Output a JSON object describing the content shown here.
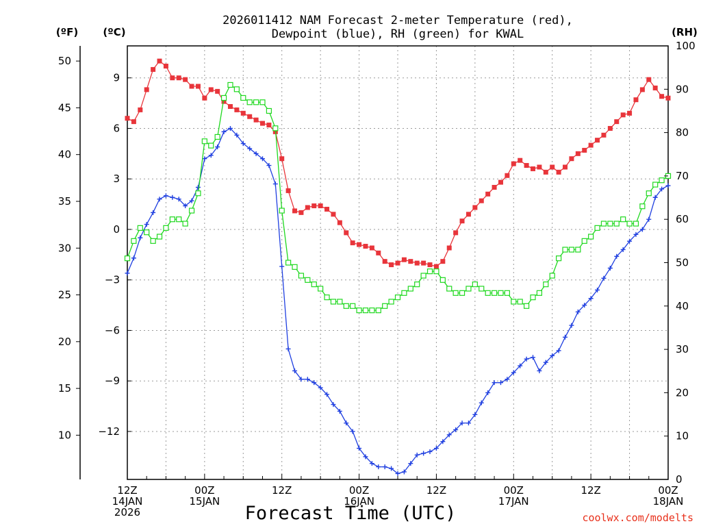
{
  "chart_data": {
    "type": "line",
    "title_lines": [
      "2026011412 NAM Forecast 2-meter Temperature (red),",
      "Dewpoint (blue), RH (green) for KWAL"
    ],
    "xlabel": "Forecast Time (UTC)",
    "credit": "coolwx.com/modelts",
    "units": {
      "fahrenheit": "(ºF)",
      "celsius": "(ºC)",
      "rh": "(RH)"
    },
    "x_ticks": [
      {
        "hour": 0,
        "lines": [
          "12Z",
          "14JAN",
          "2026"
        ]
      },
      {
        "hour": 12,
        "lines": [
          "00Z",
          "15JAN"
        ]
      },
      {
        "hour": 24,
        "lines": [
          "12Z"
        ]
      },
      {
        "hour": 36,
        "lines": [
          "00Z",
          "16JAN"
        ]
      },
      {
        "hour": 48,
        "lines": [
          "12Z"
        ]
      },
      {
        "hour": 60,
        "lines": [
          "00Z",
          "17JAN"
        ]
      },
      {
        "hour": 72,
        "lines": [
          "12Z"
        ]
      },
      {
        "hour": 84,
        "lines": [
          "00Z",
          "18JAN"
        ]
      }
    ],
    "x_range": [
      0,
      84
    ],
    "f_ticks": [
      "50",
      "45",
      "40",
      "35",
      "30",
      "25",
      "20",
      "15",
      "10"
    ],
    "c_ticks": [
      "9",
      "6",
      "3",
      "0",
      "−3",
      "−6",
      "−9",
      "−12"
    ],
    "rh_ticks": [
      "100",
      "90",
      "80",
      "70",
      "60",
      "50",
      "40",
      "30",
      "20",
      "10",
      "0"
    ],
    "c_range": [
      -14.85,
      10.9
    ],
    "rh_range": [
      0,
      100
    ],
    "grid": true,
    "series": [
      {
        "name": "Temperature (°C)",
        "color": "#e8353b",
        "marker": "filled-square",
        "axis": "celsius",
        "points": [
          [
            0,
            6.6
          ],
          [
            1,
            6.4
          ],
          [
            2,
            7.1
          ],
          [
            3,
            8.3
          ],
          [
            4,
            9.5
          ],
          [
            5,
            10.0
          ],
          [
            6,
            9.7
          ],
          [
            7,
            9.0
          ],
          [
            8,
            9.0
          ],
          [
            9,
            8.9
          ],
          [
            10,
            8.5
          ],
          [
            11,
            8.5
          ],
          [
            12,
            7.8
          ],
          [
            13,
            8.3
          ],
          [
            14,
            8.2
          ],
          [
            15,
            7.6
          ],
          [
            16,
            7.3
          ],
          [
            17,
            7.1
          ],
          [
            18,
            6.9
          ],
          [
            19,
            6.7
          ],
          [
            20,
            6.5
          ],
          [
            21,
            6.3
          ],
          [
            22,
            6.2
          ],
          [
            23,
            5.8
          ],
          [
            24,
            4.2
          ],
          [
            25,
            2.3
          ],
          [
            26,
            1.1
          ],
          [
            27,
            1.0
          ],
          [
            28,
            1.3
          ],
          [
            29,
            1.4
          ],
          [
            30,
            1.4
          ],
          [
            31,
            1.2
          ],
          [
            32,
            0.9
          ],
          [
            33,
            0.4
          ],
          [
            34,
            -0.2
          ],
          [
            35,
            -0.8
          ],
          [
            36,
            -0.9
          ],
          [
            37,
            -1.0
          ],
          [
            38,
            -1.1
          ],
          [
            39,
            -1.4
          ],
          [
            40,
            -1.9
          ],
          [
            41,
            -2.1
          ],
          [
            42,
            -2.0
          ],
          [
            43,
            -1.8
          ],
          [
            44,
            -1.9
          ],
          [
            45,
            -2.0
          ],
          [
            46,
            -2.0
          ],
          [
            47,
            -2.1
          ],
          [
            48,
            -2.2
          ],
          [
            49,
            -1.9
          ],
          [
            50,
            -1.1
          ],
          [
            51,
            -0.2
          ],
          [
            52,
            0.5
          ],
          [
            53,
            0.9
          ],
          [
            54,
            1.3
          ],
          [
            55,
            1.7
          ],
          [
            56,
            2.1
          ],
          [
            57,
            2.5
          ],
          [
            58,
            2.8
          ],
          [
            59,
            3.2
          ],
          [
            60,
            3.9
          ],
          [
            61,
            4.1
          ],
          [
            62,
            3.8
          ],
          [
            63,
            3.6
          ],
          [
            64,
            3.7
          ],
          [
            65,
            3.4
          ],
          [
            66,
            3.7
          ],
          [
            67,
            3.4
          ],
          [
            68,
            3.7
          ],
          [
            69,
            4.2
          ],
          [
            70,
            4.5
          ],
          [
            71,
            4.7
          ],
          [
            72,
            5.0
          ],
          [
            73,
            5.3
          ],
          [
            74,
            5.6
          ],
          [
            75,
            6.0
          ],
          [
            76,
            6.4
          ],
          [
            77,
            6.8
          ],
          [
            78,
            6.9
          ],
          [
            79,
            7.7
          ],
          [
            80,
            8.3
          ],
          [
            81,
            8.9
          ],
          [
            82,
            8.4
          ],
          [
            83,
            7.9
          ],
          [
            84,
            7.8
          ]
        ]
      },
      {
        "name": "Dewpoint (°C)",
        "color": "#1f3fe0",
        "marker": "plus",
        "axis": "celsius",
        "points": [
          [
            0,
            -2.6
          ],
          [
            1,
            -1.7
          ],
          [
            2,
            -0.5
          ],
          [
            3,
            0.3
          ],
          [
            4,
            1.0
          ],
          [
            5,
            1.8
          ],
          [
            6,
            2.0
          ],
          [
            7,
            1.9
          ],
          [
            8,
            1.8
          ],
          [
            9,
            1.4
          ],
          [
            10,
            1.7
          ],
          [
            11,
            2.5
          ],
          [
            12,
            4.2
          ],
          [
            13,
            4.4
          ],
          [
            14,
            4.9
          ],
          [
            15,
            5.8
          ],
          [
            16,
            6.0
          ],
          [
            17,
            5.6
          ],
          [
            18,
            5.1
          ],
          [
            19,
            4.8
          ],
          [
            20,
            4.5
          ],
          [
            21,
            4.2
          ],
          [
            22,
            3.8
          ],
          [
            23,
            2.7
          ],
          [
            24,
            -2.2
          ],
          [
            25,
            -7.1
          ],
          [
            26,
            -8.4
          ],
          [
            27,
            -8.9
          ],
          [
            28,
            -8.9
          ],
          [
            29,
            -9.1
          ],
          [
            30,
            -9.4
          ],
          [
            31,
            -9.8
          ],
          [
            32,
            -10.4
          ],
          [
            33,
            -10.8
          ],
          [
            34,
            -11.5
          ],
          [
            35,
            -12.0
          ],
          [
            36,
            -13.0
          ],
          [
            37,
            -13.5
          ],
          [
            38,
            -13.9
          ],
          [
            39,
            -14.1
          ],
          [
            40,
            -14.1
          ],
          [
            41,
            -14.2
          ],
          [
            42,
            -14.5
          ],
          [
            43,
            -14.4
          ],
          [
            44,
            -13.9
          ],
          [
            45,
            -13.4
          ],
          [
            46,
            -13.3
          ],
          [
            47,
            -13.2
          ],
          [
            48,
            -13.0
          ],
          [
            49,
            -12.6
          ],
          [
            50,
            -12.2
          ],
          [
            51,
            -11.9
          ],
          [
            52,
            -11.5
          ],
          [
            53,
            -11.5
          ],
          [
            54,
            -11.0
          ],
          [
            55,
            -10.3
          ],
          [
            56,
            -9.7
          ],
          [
            57,
            -9.1
          ],
          [
            58,
            -9.1
          ],
          [
            59,
            -8.9
          ],
          [
            60,
            -8.5
          ],
          [
            61,
            -8.1
          ],
          [
            62,
            -7.7
          ],
          [
            63,
            -7.6
          ],
          [
            64,
            -8.4
          ],
          [
            65,
            -7.9
          ],
          [
            66,
            -7.5
          ],
          [
            67,
            -7.2
          ],
          [
            68,
            -6.4
          ],
          [
            69,
            -5.7
          ],
          [
            70,
            -4.9
          ],
          [
            71,
            -4.5
          ],
          [
            72,
            -4.1
          ],
          [
            73,
            -3.6
          ],
          [
            74,
            -2.9
          ],
          [
            75,
            -2.3
          ],
          [
            76,
            -1.6
          ],
          [
            77,
            -1.2
          ],
          [
            78,
            -0.7
          ],
          [
            79,
            -0.3
          ],
          [
            80,
            0.0
          ],
          [
            81,
            0.6
          ],
          [
            82,
            1.9
          ],
          [
            83,
            2.4
          ],
          [
            84,
            2.6
          ]
        ]
      },
      {
        "name": "RH (%)",
        "color": "#1fd81f",
        "marker": "open-square",
        "axis": "rh",
        "points": [
          [
            0,
            51
          ],
          [
            1,
            55
          ],
          [
            2,
            58
          ],
          [
            3,
            57
          ],
          [
            4,
            55
          ],
          [
            5,
            56
          ],
          [
            6,
            58
          ],
          [
            7,
            60
          ],
          [
            8,
            60
          ],
          [
            9,
            59
          ],
          [
            10,
            62
          ],
          [
            11,
            66
          ],
          [
            12,
            78
          ],
          [
            13,
            77
          ],
          [
            14,
            79
          ],
          [
            15,
            88
          ],
          [
            16,
            91
          ],
          [
            17,
            90
          ],
          [
            18,
            88
          ],
          [
            19,
            87
          ],
          [
            20,
            87
          ],
          [
            21,
            87
          ],
          [
            22,
            85
          ],
          [
            23,
            81
          ],
          [
            24,
            62
          ],
          [
            25,
            50
          ],
          [
            26,
            49
          ],
          [
            27,
            47
          ],
          [
            28,
            46
          ],
          [
            29,
            45
          ],
          [
            30,
            44
          ],
          [
            31,
            42
          ],
          [
            32,
            41
          ],
          [
            33,
            41
          ],
          [
            34,
            40
          ],
          [
            35,
            40
          ],
          [
            36,
            39
          ],
          [
            37,
            39
          ],
          [
            38,
            39
          ],
          [
            39,
            39
          ],
          [
            40,
            40
          ],
          [
            41,
            41
          ],
          [
            42,
            42
          ],
          [
            43,
            43
          ],
          [
            44,
            44
          ],
          [
            45,
            45
          ],
          [
            46,
            47
          ],
          [
            47,
            48
          ],
          [
            48,
            48
          ],
          [
            49,
            46
          ],
          [
            50,
            44
          ],
          [
            51,
            43
          ],
          [
            52,
            43
          ],
          [
            53,
            44
          ],
          [
            54,
            45
          ],
          [
            55,
            44
          ],
          [
            56,
            43
          ],
          [
            57,
            43
          ],
          [
            58,
            43
          ],
          [
            59,
            43
          ],
          [
            60,
            41
          ],
          [
            61,
            41
          ],
          [
            62,
            40
          ],
          [
            63,
            42
          ],
          [
            64,
            43
          ],
          [
            65,
            45
          ],
          [
            66,
            47
          ],
          [
            67,
            51
          ],
          [
            68,
            53
          ],
          [
            69,
            53
          ],
          [
            70,
            53
          ],
          [
            71,
            55
          ],
          [
            72,
            56
          ],
          [
            73,
            58
          ],
          [
            74,
            59
          ],
          [
            75,
            59
          ],
          [
            76,
            59
          ],
          [
            77,
            60
          ],
          [
            78,
            59
          ],
          [
            79,
            59
          ],
          [
            80,
            63
          ],
          [
            81,
            66
          ],
          [
            82,
            68
          ],
          [
            83,
            69
          ],
          [
            84,
            70
          ]
        ]
      }
    ]
  }
}
